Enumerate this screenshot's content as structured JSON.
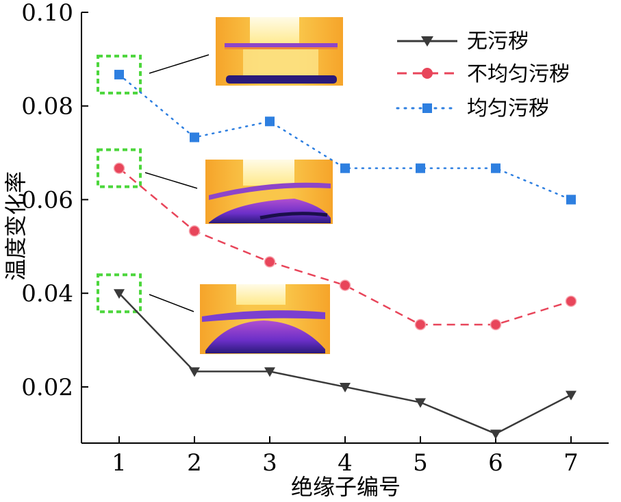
{
  "chart_data": {
    "type": "line",
    "xlabel": "绝缘子编号",
    "ylabel": "温度变化率",
    "x": [
      1,
      2,
      3,
      4,
      5,
      6,
      7
    ],
    "xlim": [
      0.5,
      7.5
    ],
    "ylim": [
      0.008,
      0.1
    ],
    "yticks": [
      0.02,
      0.04,
      0.06,
      0.08,
      0.1
    ],
    "ytick_labels": [
      "0.02",
      "0.04",
      "0.06",
      "0.08",
      "0.10"
    ],
    "xtick_labels": [
      "1",
      "2",
      "3",
      "4",
      "5",
      "6",
      "7"
    ],
    "grid": false,
    "legend_position": "top-right",
    "series": [
      {
        "name": "无污秽",
        "values": [
          0.04,
          0.0233,
          0.0233,
          0.02,
          0.0167,
          0.01,
          0.0183
        ],
        "color": "#3a3a3a",
        "line": "solid",
        "marker": "triangle-down"
      },
      {
        "name": "不均匀污秽",
        "values": [
          0.0667,
          0.0533,
          0.0467,
          0.0417,
          0.0333,
          0.0333,
          0.0383
        ],
        "color": "#e8455a",
        "line": "dashed",
        "marker": "circle"
      },
      {
        "name": "均匀污秽",
        "values": [
          0.0867,
          0.0733,
          0.0767,
          0.0667,
          0.0667,
          0.0667,
          0.06
        ],
        "color": "#2e7fe0",
        "line": "dotted",
        "marker": "square"
      }
    ],
    "highlight_points": [
      {
        "series": "均匀污秽",
        "x": 1
      },
      {
        "series": "不均匀污秽",
        "x": 1
      },
      {
        "series": "无污秽",
        "x": 1
      }
    ],
    "highlight_color": "#4cd63c",
    "thermal_inset_colors": {
      "hot": "#fff6c8",
      "warm": "#f6b52d",
      "mid": "#f08a3a",
      "cool": "#9b3fd0",
      "cold": "#2a1a7a"
    }
  }
}
